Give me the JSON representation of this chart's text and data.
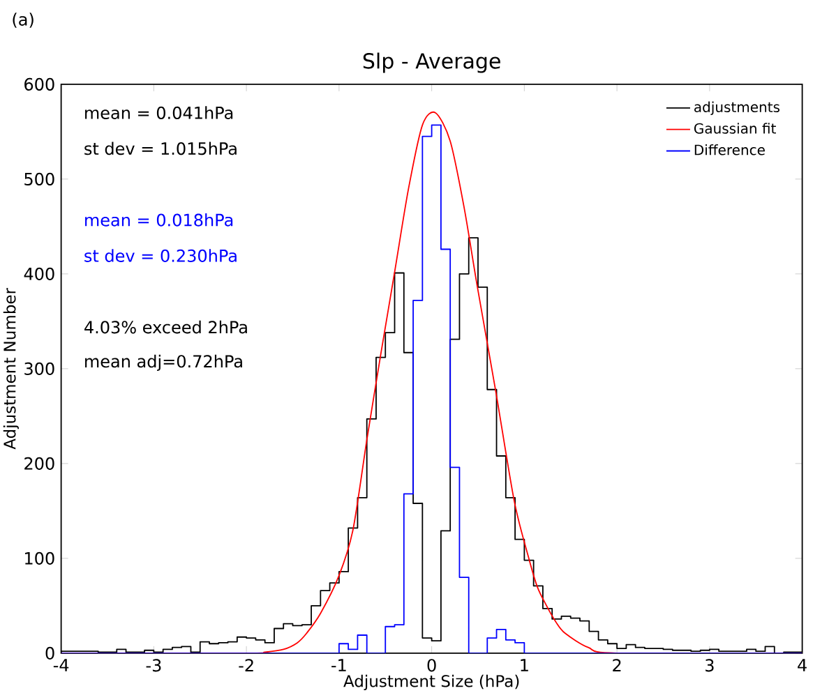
{
  "chart_data": {
    "type": "histogram",
    "title": "Slp - Average",
    "xlabel": "Adjustment Size (hPa)",
    "ylabel": "Adjustment Number",
    "bins": [
      -4.0,
      -3.9,
      -3.8,
      -3.7,
      -3.6,
      -3.5,
      -3.4,
      -3.3,
      -3.2,
      -3.1,
      -3.0,
      -2.9,
      -2.8,
      -2.7,
      -2.6,
      -2.5,
      -2.4,
      -2.3,
      -2.2,
      -2.1,
      -2.0,
      -1.9,
      -1.8,
      -1.7,
      -1.6,
      -1.5,
      -1.4,
      -1.3,
      -1.2,
      -1.1,
      -1.0,
      -0.9,
      -0.8,
      -0.7,
      -0.6,
      -0.5,
      -0.4,
      -0.3,
      -0.2,
      -0.1,
      0.0,
      0.1,
      0.2,
      0.3,
      0.4,
      0.5,
      0.6,
      0.7,
      0.8,
      0.9,
      1.0,
      1.1,
      1.2,
      1.3,
      1.4,
      1.5,
      1.6,
      1.7,
      1.8,
      1.9,
      2.0,
      2.1,
      2.2,
      2.3,
      2.4,
      2.5,
      2.6,
      2.7,
      2.8,
      2.9,
      3.0,
      3.1,
      3.2,
      3.3,
      3.4,
      3.5,
      3.6,
      3.7,
      3.8,
      3.9,
      4.0
    ],
    "series": [
      {
        "name": "adjustments",
        "color": "#000000",
        "values": [
          2,
          2,
          2,
          2,
          1,
          1,
          4,
          1,
          1,
          3,
          1,
          4,
          6,
          7,
          1,
          12,
          10,
          11,
          12,
          17,
          16,
          14,
          11,
          26,
          31,
          29,
          30,
          50,
          66,
          74,
          86,
          132,
          164,
          247,
          312,
          338,
          401,
          317,
          158,
          16,
          13,
          129,
          331,
          400,
          438,
          386,
          278,
          208,
          164,
          120,
          98,
          71,
          47,
          36,
          39,
          37,
          34,
          23,
          14,
          10,
          5,
          9,
          6,
          5,
          5,
          4,
          3,
          3,
          2,
          3,
          4,
          2,
          2,
          2,
          4,
          2,
          7,
          0,
          1,
          1
        ]
      },
      {
        "name": "Gaussian fit",
        "color": "#ff0000",
        "type": "line",
        "x": [
          -4,
          -2,
          -1.8,
          -1.6,
          -1.45,
          -1.35,
          -1.2,
          -1.0,
          -0.85,
          -0.7,
          -0.55,
          -0.4,
          -0.25,
          -0.1,
          0.04,
          0.2,
          0.35,
          0.49,
          0.69,
          0.89,
          1.04,
          1.14,
          1.24,
          1.34,
          1.44,
          1.69,
          2.0,
          4
        ],
        "values": [
          0,
          0,
          1,
          4,
          11,
          21,
          42,
          82,
          130,
          225,
          315,
          402,
          490,
          557,
          570,
          540,
          470,
          388,
          277,
          161,
          103,
          70,
          50,
          33,
          21,
          6,
          0,
          0
        ]
      },
      {
        "name": "Difference",
        "color": "#0000ff",
        "values": [
          0,
          0,
          0,
          0,
          0,
          0,
          0,
          0,
          0,
          0,
          0,
          0,
          0,
          0,
          0,
          0,
          0,
          0,
          0,
          0,
          0,
          0,
          0,
          0,
          0,
          0,
          0,
          0,
          0,
          0,
          10,
          4,
          19,
          0,
          0,
          28,
          30,
          168,
          372,
          545,
          557,
          426,
          196,
          80,
          0,
          0,
          16,
          25,
          14,
          11,
          0,
          0,
          0,
          0,
          0,
          0,
          0,
          0,
          0,
          0,
          0,
          0,
          0,
          0,
          0,
          0,
          0,
          0,
          0,
          0,
          0,
          0,
          0,
          0,
          0,
          0,
          0,
          0,
          0,
          0
        ]
      }
    ],
    "xlim": [
      -4,
      4
    ],
    "ylim": [
      0,
      600
    ],
    "xticks": [
      -4,
      -3,
      -2,
      -1,
      0,
      1,
      2,
      3,
      4
    ],
    "yticks": [
      0,
      100,
      200,
      300,
      400,
      500,
      600
    ],
    "legend": "top right",
    "annotations": [
      "(a)",
      "mean = 0.041hPa",
      "st dev = 1.015hPa",
      "mean = 0.018hPa",
      "st dev = 0.230hPa",
      "4.03% exceed 2hPa",
      "mean adj=0.72hPa"
    ]
  }
}
